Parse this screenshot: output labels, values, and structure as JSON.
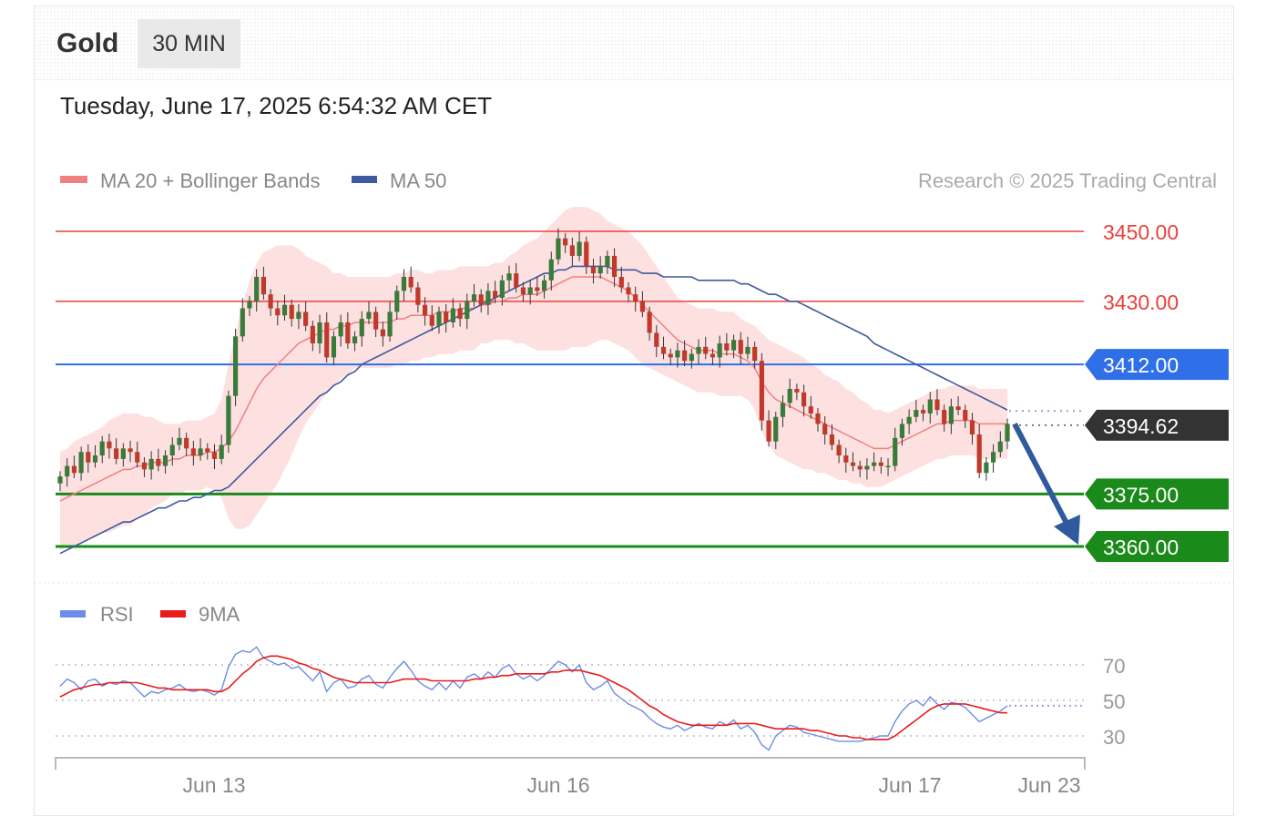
{
  "header": {
    "instrument": "Gold",
    "timeframe": "30 MIN",
    "datetime": "Tuesday, June 17, 2025 6:54:32 AM CET"
  },
  "legend": {
    "ma20_bb": "MA 20 + Bollinger Bands",
    "ma50": "MA 50",
    "rsi": "RSI",
    "rsi_ma": "9MA",
    "credit": "Research © 2025 Trading Central"
  },
  "colors": {
    "resistance": "#e8413c",
    "pivot": "#2f6fe8",
    "support": "#1a8a1a",
    "last_price": "#333333",
    "ma20": "#f08080",
    "band": "#fde1e1",
    "ma50": "#3e5a9e",
    "candle_up": "#3a7a3a",
    "candle_down": "#c0392b",
    "rsi": "#6a8de6",
    "rsi_ma": "#e81c1c",
    "arrow": "#2f5a9e"
  },
  "chart_data": [
    {
      "type": "candlestick",
      "title": "",
      "ylim": [
        3340,
        3460
      ],
      "x_ticks": [
        "Jun 13",
        "Jun 16",
        "Jun 17",
        "Jun 23"
      ],
      "levels": [
        {
          "label": "3450.00",
          "value": 3450,
          "kind": "resistance"
        },
        {
          "label": "3430.00",
          "value": 3430,
          "kind": "resistance"
        },
        {
          "label": "3412.00",
          "value": 3412,
          "kind": "pivot"
        },
        {
          "label": "3394.62",
          "value": 3394.62,
          "kind": "last"
        },
        {
          "label": "3375.00",
          "value": 3375,
          "kind": "support"
        },
        {
          "label": "3360.00",
          "value": 3360,
          "kind": "support"
        }
      ],
      "close": [
        3380,
        3383,
        3381,
        3387,
        3384,
        3386,
        3390,
        3388,
        3385,
        3388,
        3387,
        3384,
        3382,
        3385,
        3383,
        3386,
        3389,
        3391,
        3388,
        3386,
        3388,
        3387,
        3385,
        3389,
        3403,
        3420,
        3428,
        3430,
        3437,
        3432,
        3428,
        3426,
        3429,
        3425,
        3427,
        3423,
        3418,
        3424,
        3414,
        3420,
        3424,
        3418,
        3420,
        3425,
        3427,
        3422,
        3420,
        3427,
        3433,
        3437,
        3434,
        3429,
        3426,
        3423,
        3427,
        3424,
        3428,
        3425,
        3430,
        3432,
        3429,
        3433,
        3431,
        3436,
        3438,
        3434,
        3432,
        3434,
        3433,
        3436,
        3442,
        3448,
        3446,
        3443,
        3447,
        3440,
        3438,
        3440,
        3443,
        3437,
        3434,
        3432,
        3430,
        3427,
        3421,
        3417,
        3415,
        3414,
        3416,
        3413,
        3415,
        3417,
        3415,
        3414,
        3418,
        3416,
        3419,
        3415,
        3417,
        3413,
        3396,
        3390,
        3397,
        3401,
        3405,
        3404,
        3400,
        3398,
        3395,
        3392,
        3389,
        3386,
        3384,
        3383,
        3382,
        3383,
        3384,
        3383,
        3383,
        3391,
        3395,
        3397,
        3399,
        3398,
        3402,
        3399,
        3395,
        3400,
        3399,
        3396,
        3392,
        3381,
        3384,
        3387,
        3390,
        3395
      ],
      "ma20": [
        3373,
        3374,
        3375,
        3376,
        3377,
        3378,
        3379,
        3380,
        3381,
        3382,
        3382,
        3383,
        3383,
        3384,
        3384,
        3384,
        3385,
        3385,
        3386,
        3386,
        3386,
        3387,
        3387,
        3388,
        3390,
        3393,
        3397,
        3401,
        3405,
        3408,
        3410,
        3412,
        3414,
        3416,
        3418,
        3419,
        3420,
        3421,
        3422,
        3422,
        3423,
        3423,
        3424,
        3424,
        3424,
        3424,
        3424,
        3424,
        3425,
        3425,
        3426,
        3426,
        3426,
        3426,
        3427,
        3427,
        3427,
        3428,
        3428,
        3428,
        3429,
        3429,
        3430,
        3430,
        3431,
        3431,
        3432,
        3432,
        3432,
        3433,
        3434,
        3435,
        3436,
        3437,
        3437,
        3437,
        3437,
        3437,
        3436,
        3435,
        3434,
        3433,
        3431,
        3429,
        3427,
        3425,
        3423,
        3421,
        3419,
        3418,
        3417,
        3416,
        3416,
        3416,
        3415,
        3415,
        3415,
        3414,
        3413,
        3411,
        3407,
        3404,
        3402,
        3401,
        3400,
        3399,
        3398,
        3397,
        3396,
        3395,
        3394,
        3393,
        3392,
        3391,
        3390,
        3389,
        3388,
        3388,
        3388,
        3389,
        3390,
        3391,
        3392,
        3393,
        3394,
        3395,
        3395,
        3396,
        3396,
        3396,
        3396,
        3395,
        3395,
        3395,
        3395,
        3395
      ],
      "ma50": [
        3358,
        3359,
        3360,
        3361,
        3362,
        3363,
        3364,
        3365,
        3366,
        3367,
        3367,
        3368,
        3369,
        3370,
        3371,
        3371,
        3372,
        3373,
        3373,
        3374,
        3374,
        3375,
        3376,
        3376,
        3377,
        3379,
        3381,
        3383,
        3385,
        3387,
        3389,
        3391,
        3393,
        3395,
        3397,
        3399,
        3401,
        3403,
        3404,
        3406,
        3407,
        3409,
        3410,
        3412,
        3413,
        3414,
        3415,
        3416,
        3417,
        3418,
        3419,
        3420,
        3421,
        3422,
        3423,
        3424,
        3425,
        3426,
        3427,
        3428,
        3429,
        3430,
        3431,
        3432,
        3433,
        3434,
        3435,
        3436,
        3437,
        3438,
        3438,
        3439,
        3439,
        3440,
        3440,
        3440,
        3440,
        3440,
        3440,
        3439,
        3439,
        3439,
        3439,
        3438,
        3438,
        3438,
        3437,
        3437,
        3437,
        3437,
        3437,
        3436,
        3436,
        3436,
        3436,
        3436,
        3436,
        3435,
        3435,
        3434,
        3433,
        3432,
        3432,
        3431,
        3430,
        3430,
        3429,
        3428,
        3427,
        3426,
        3425,
        3424,
        3423,
        3422,
        3421,
        3420,
        3418,
        3417,
        3416,
        3415,
        3414,
        3413,
        3412,
        3411,
        3410,
        3409,
        3408,
        3407,
        3406,
        3405,
        3404,
        3403,
        3402,
        3401,
        3400,
        3399
      ],
      "bb_width": [
        14,
        14,
        15,
        15,
        15,
        15,
        15,
        16,
        16,
        16,
        16,
        15,
        14,
        13,
        12,
        11,
        10,
        10,
        10,
        10,
        10,
        10,
        11,
        14,
        22,
        28,
        32,
        35,
        36,
        36,
        35,
        34,
        32,
        30,
        27,
        24,
        22,
        20,
        18,
        16,
        15,
        14,
        13,
        13,
        13,
        13,
        13,
        13,
        13,
        13,
        13,
        13,
        12,
        12,
        12,
        12,
        12,
        12,
        12,
        12,
        11,
        11,
        11,
        11,
        12,
        13,
        14,
        15,
        16,
        17,
        18,
        19,
        20,
        20,
        20,
        20,
        19,
        18,
        17,
        17,
        17,
        17,
        17,
        17,
        16,
        15,
        14,
        13,
        12,
        12,
        12,
        12,
        12,
        12,
        12,
        12,
        12,
        11,
        11,
        12,
        14,
        15,
        16,
        16,
        16,
        16,
        16,
        15,
        15,
        14,
        14,
        14,
        13,
        13,
        12,
        12,
        11,
        11,
        10,
        10,
        10,
        10,
        10,
        10,
        10,
        10,
        10,
        10,
        10,
        10,
        10,
        10,
        10,
        10,
        10,
        10
      ]
    },
    {
      "type": "line",
      "title": "",
      "ylim": [
        20,
        80
      ],
      "y_ticks": [
        70,
        50,
        30
      ],
      "series": [
        {
          "name": "RSI",
          "values": [
            58,
            62,
            60,
            56,
            61,
            62,
            58,
            60,
            59,
            61,
            60,
            56,
            52,
            55,
            54,
            56,
            57,
            59,
            56,
            55,
            56,
            55,
            53,
            56,
            69,
            76,
            78,
            77,
            80,
            74,
            72,
            70,
            71,
            68,
            69,
            65,
            61,
            66,
            55,
            60,
            62,
            57,
            58,
            62,
            64,
            59,
            57,
            63,
            68,
            72,
            67,
            61,
            58,
            56,
            60,
            56,
            61,
            57,
            63,
            65,
            62,
            66,
            63,
            68,
            70,
            65,
            62,
            64,
            61,
            64,
            68,
            72,
            70,
            66,
            70,
            60,
            56,
            58,
            61,
            54,
            51,
            48,
            46,
            44,
            40,
            37,
            35,
            34,
            36,
            33,
            35,
            37,
            35,
            34,
            38,
            36,
            39,
            34,
            36,
            32,
            25,
            22,
            30,
            33,
            36,
            35,
            32,
            31,
            30,
            29,
            28,
            27,
            27,
            27,
            27,
            28,
            29,
            30,
            30,
            38,
            44,
            48,
            50,
            47,
            52,
            48,
            45,
            49,
            48,
            46,
            42,
            38,
            40,
            42,
            44,
            47
          ]
        },
        {
          "name": "9MA",
          "values": [
            52,
            54,
            56,
            57,
            58,
            59,
            59,
            60,
            60,
            60,
            60,
            60,
            59,
            58,
            57,
            57,
            56,
            56,
            56,
            56,
            56,
            56,
            55,
            55,
            57,
            61,
            65,
            68,
            72,
            74,
            75,
            75,
            74,
            73,
            71,
            70,
            68,
            67,
            65,
            63,
            62,
            61,
            60,
            60,
            60,
            60,
            60,
            60,
            61,
            62,
            62,
            62,
            62,
            61,
            61,
            61,
            61,
            61,
            61,
            62,
            62,
            63,
            63,
            64,
            64,
            65,
            65,
            65,
            65,
            65,
            66,
            66,
            67,
            67,
            67,
            66,
            65,
            64,
            62,
            60,
            58,
            56,
            53,
            50,
            47,
            45,
            42,
            40,
            38,
            37,
            36,
            36,
            36,
            36,
            36,
            36,
            37,
            37,
            37,
            37,
            36,
            35,
            34,
            34,
            34,
            34,
            34,
            33,
            33,
            32,
            31,
            30,
            30,
            29,
            29,
            28,
            28,
            28,
            28,
            30,
            33,
            36,
            39,
            42,
            45,
            47,
            48,
            48,
            48,
            48,
            47,
            46,
            45,
            44,
            43,
            43
          ]
        }
      ]
    }
  ]
}
